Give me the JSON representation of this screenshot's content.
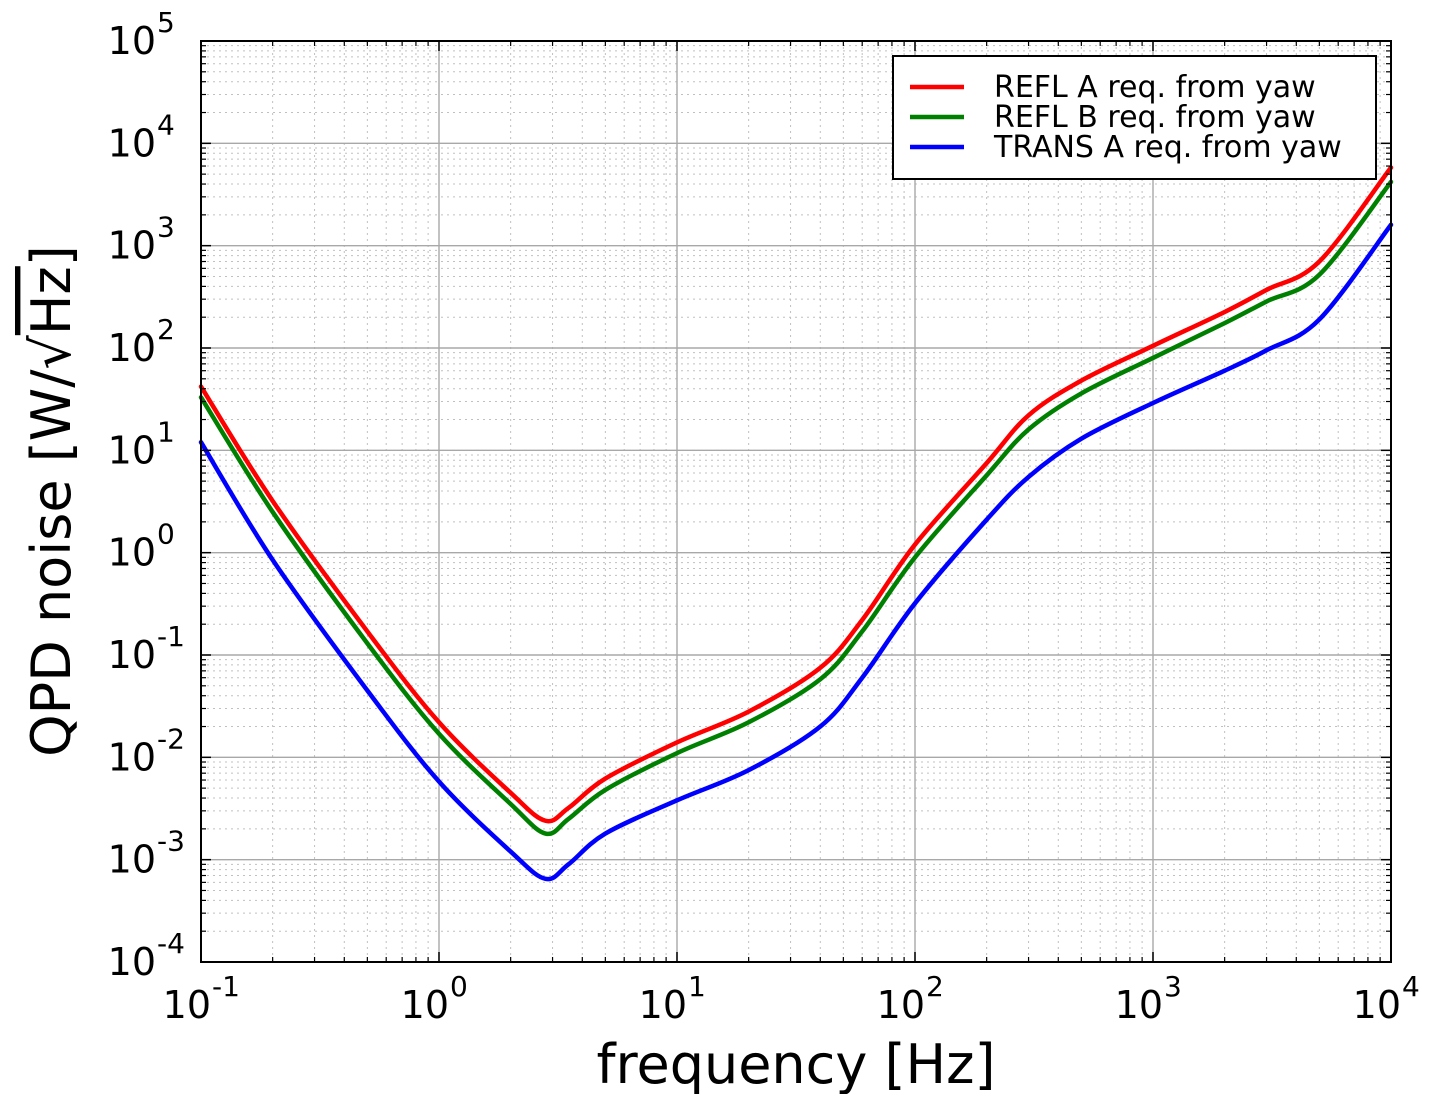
{
  "chart_data": {
    "type": "line",
    "title": "",
    "xlabel": "frequency [Hz]",
    "ylabel": "QPD noise [W/√Hz]",
    "ylabel_parts": {
      "before": "QPD noise [W/",
      "radical": "√",
      "radicand": "Hz",
      "after": "]"
    },
    "x_scale": "log",
    "y_scale": "log",
    "xlim": [
      0.1,
      10000
    ],
    "ylim": [
      0.0001,
      100000
    ],
    "grid": {
      "major": true,
      "minor": true
    },
    "legend_position": "top-right",
    "x_ticks": [
      {
        "value": 0.1,
        "base": "10",
        "exp": "-1"
      },
      {
        "value": 1,
        "base": "10",
        "exp": "0"
      },
      {
        "value": 10,
        "base": "10",
        "exp": "1"
      },
      {
        "value": 100,
        "base": "10",
        "exp": "2"
      },
      {
        "value": 1000,
        "base": "10",
        "exp": "3"
      },
      {
        "value": 10000,
        "base": "10",
        "exp": "4"
      }
    ],
    "y_ticks": [
      {
        "value": 0.0001,
        "base": "10",
        "exp": "-4"
      },
      {
        "value": 0.001,
        "base": "10",
        "exp": "-3"
      },
      {
        "value": 0.01,
        "base": "10",
        "exp": "-2"
      },
      {
        "value": 0.1,
        "base": "10",
        "exp": "-1"
      },
      {
        "value": 1,
        "base": "10",
        "exp": "0"
      },
      {
        "value": 10,
        "base": "10",
        "exp": "1"
      },
      {
        "value": 100,
        "base": "10",
        "exp": "2"
      },
      {
        "value": 1000,
        "base": "10",
        "exp": "3"
      },
      {
        "value": 10000,
        "base": "10",
        "exp": "4"
      },
      {
        "value": 100000,
        "base": "10",
        "exp": "5"
      }
    ],
    "series": [
      {
        "name": "REFL A req. from yaw",
        "color": "#ff0000",
        "x": [
          0.1,
          0.2,
          0.5,
          1,
          2,
          2.8,
          3.5,
          5,
          10,
          20,
          40,
          60,
          100,
          200,
          300,
          500,
          1000,
          2000,
          3000,
          5000,
          10000
        ],
        "y": [
          42,
          3.2,
          0.17,
          0.022,
          0.0045,
          0.0024,
          0.0032,
          0.0062,
          0.014,
          0.028,
          0.075,
          0.22,
          1.2,
          7.5,
          22,
          48,
          105,
          225,
          370,
          700,
          5800
        ]
      },
      {
        "name": "REFL B req. from yaw",
        "color": "#008000",
        "x": [
          0.1,
          0.2,
          0.5,
          1,
          2,
          2.8,
          3.5,
          5,
          10,
          20,
          40,
          60,
          100,
          200,
          300,
          500,
          1000,
          2000,
          3000,
          5000,
          10000
        ],
        "y": [
          33,
          2.5,
          0.13,
          0.017,
          0.0035,
          0.0018,
          0.0025,
          0.0048,
          0.011,
          0.022,
          0.058,
          0.17,
          0.9,
          5.7,
          16,
          36,
          80,
          175,
          285,
          520,
          4200
        ]
      },
      {
        "name": "TRANS A req. from yaw",
        "color": "#0000ff",
        "x": [
          0.1,
          0.2,
          0.5,
          1,
          2,
          2.8,
          3.5,
          5,
          10,
          20,
          40,
          60,
          100,
          200,
          300,
          500,
          1000,
          2000,
          3000,
          5000,
          10000
        ],
        "y": [
          12,
          0.85,
          0.045,
          0.0058,
          0.0012,
          0.00065,
          0.0009,
          0.0018,
          0.0038,
          0.0075,
          0.02,
          0.06,
          0.32,
          2.1,
          5.5,
          13,
          29,
          60,
          95,
          190,
          1600
        ]
      }
    ]
  }
}
